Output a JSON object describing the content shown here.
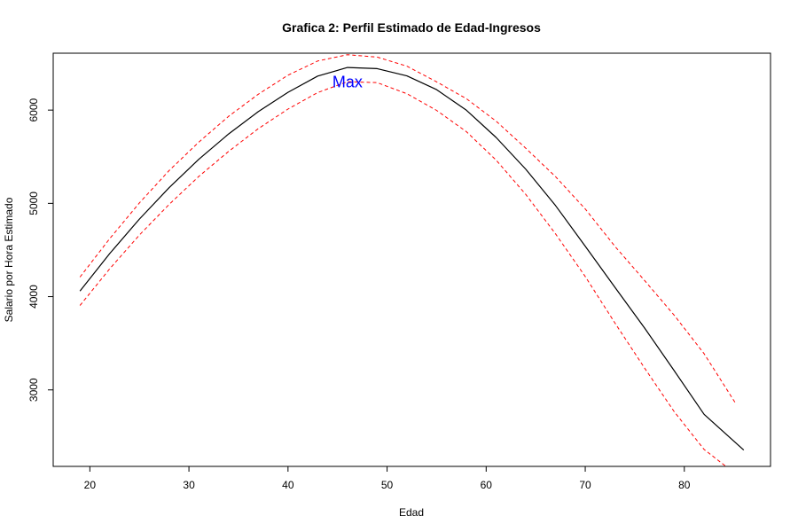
{
  "chart_data": {
    "type": "line",
    "title": "Grafica 2: Perfil Estimado de Edad-Ingresos",
    "xlabel": "Edad",
    "ylabel": "Salario por Hora Estimado",
    "xlim": [
      16.3,
      88.7
    ],
    "ylim": [
      2180,
      6610
    ],
    "xticks": [
      20,
      30,
      40,
      50,
      60,
      70,
      80
    ],
    "yticks": [
      3000,
      4000,
      5000,
      6000
    ],
    "grid": false,
    "series": [
      {
        "role": "estimate",
        "color": "#000000",
        "dash": "solid",
        "x": [
          19,
          22,
          25,
          28,
          31,
          34,
          37,
          40,
          43,
          46,
          49,
          52,
          55,
          58,
          61,
          64,
          67,
          70,
          73,
          76,
          79,
          82,
          86
        ],
        "y": [
          4060,
          4462,
          4831,
          5168,
          5473,
          5744,
          5984,
          6191,
          6365,
          6457,
          6445,
          6367,
          6219,
          5999,
          5707,
          5366,
          4977,
          4541,
          4099,
          3662,
          3203,
          2738,
          2355
        ]
      },
      {
        "role": "upper-bound",
        "color": "#ff0000",
        "dash": "dashed",
        "x": [
          19,
          22,
          25,
          28,
          31,
          34,
          37,
          40,
          43,
          46,
          49,
          52,
          55,
          58,
          61,
          64,
          67,
          70,
          73,
          76,
          79,
          82,
          85.2
        ],
        "y": [
          4210,
          4621,
          5004,
          5351,
          5657,
          5933,
          6170,
          6374,
          6526,
          6594,
          6568,
          6471,
          6303,
          6122,
          5882,
          5591,
          5287,
          4941,
          4539,
          4172,
          3798,
          3388,
          2852
        ]
      },
      {
        "role": "lower-bound",
        "color": "#ff0000",
        "dash": "dashed",
        "x": [
          19,
          22,
          25,
          28,
          31,
          34,
          37,
          40,
          43,
          46,
          49,
          52,
          55,
          58,
          61,
          64,
          67,
          70,
          73,
          76,
          79,
          82,
          84.2
        ],
        "y": [
          3905,
          4298,
          4660,
          4988,
          5290,
          5557,
          5801,
          6011,
          6188,
          6305,
          6294,
          6176,
          5997,
          5769,
          5464,
          5096,
          4674,
          4216,
          3716,
          3232,
          2764,
          2362,
          2180
        ]
      }
    ],
    "annotations": [
      {
        "text": "Max",
        "x": 46,
        "y": 6290,
        "color": "#0000ff"
      }
    ]
  }
}
